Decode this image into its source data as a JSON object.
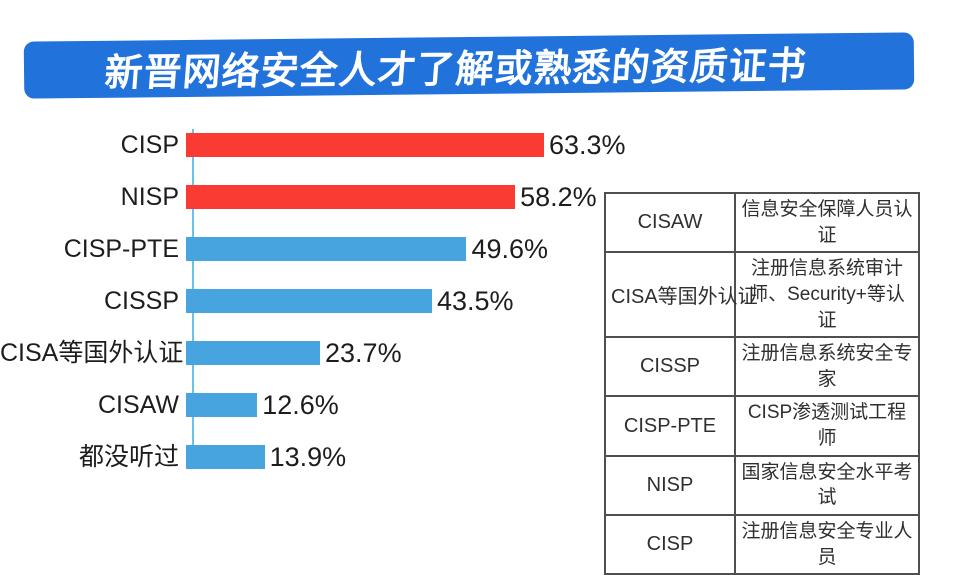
{
  "page": {
    "background": "#ffffff"
  },
  "banner": {
    "title": "新晋网络安全人才了解或熟悉的资质证书",
    "bg_color": "#2173db",
    "text_color": "#ffffff"
  },
  "chart_data": {
    "type": "bar",
    "orientation": "horizontal",
    "title": "新晋网络安全人才了解或熟悉的资质证书",
    "categories": [
      "CISP",
      "NISP",
      "CISP-PTE",
      "CISSP",
      "CISA等国外认证",
      "CISAW",
      "都没听过"
    ],
    "values": [
      63.3,
      58.2,
      49.6,
      43.5,
      23.7,
      12.6,
      13.9
    ],
    "value_labels": [
      "63.3%",
      "58.2%",
      "49.6%",
      "43.5%",
      "23.7%",
      "12.6%",
      "13.9%"
    ],
    "bar_colors": [
      "#f93b33",
      "#f93b33",
      "#47a4de",
      "#47a4de",
      "#47a4de",
      "#47a4de",
      "#47a4de"
    ],
    "unit": "%",
    "xlim": [
      0,
      70
    ],
    "axis_line_color": "#67c3ea",
    "grid": false,
    "legend": "none"
  },
  "legend_table": {
    "border_color": "#4f4f4f",
    "rows": [
      {
        "abbr": "CISAW",
        "full": "信息安全保障人员认证"
      },
      {
        "abbr": "CISA等国外认证",
        "full": "注册信息系统审计师、Security+等认证"
      },
      {
        "abbr": "CISSP",
        "full": "注册信息系统安全专家"
      },
      {
        "abbr": "CISP-PTE",
        "full": "CISP渗透测试工程师"
      },
      {
        "abbr": "NISP",
        "full": "国家信息安全水平考试"
      },
      {
        "abbr": "CISP",
        "full": "注册信息安全专业人员"
      }
    ]
  }
}
